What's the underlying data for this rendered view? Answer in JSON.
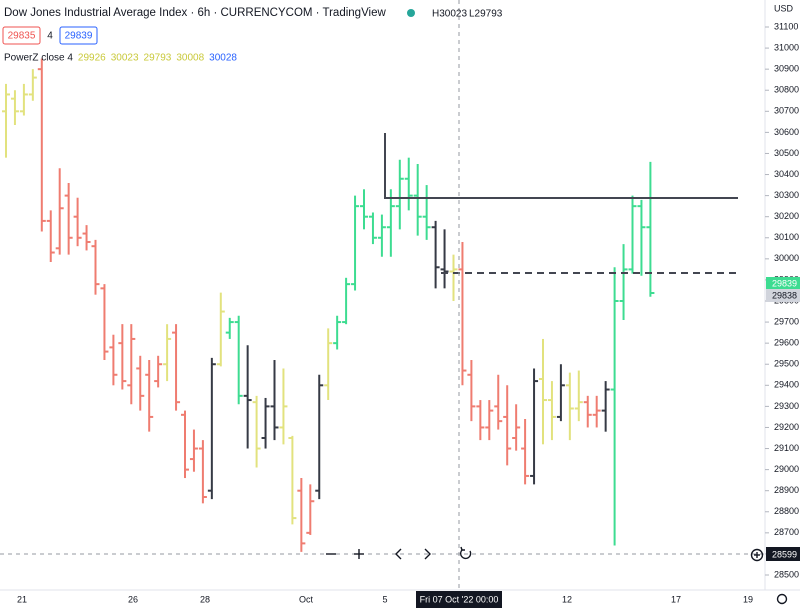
{
  "chart_data": {
    "type": "ohlc",
    "title": "Dow Jones Industrial Average Index · 6h · CURRENCYCOM · TradingView",
    "header_high": "H30023",
    "header_low": "L29793",
    "bid": "29835",
    "spread": "4",
    "ask": "29839",
    "indicator": {
      "name": "PowerZ close 4",
      "values": [
        29926,
        30023,
        29793,
        30008,
        30028
      ]
    },
    "currency": "USD",
    "open": [
      30700,
      30760,
      30700,
      30780,
      30900,
      30180,
      30050,
      30300,
      30200,
      30120,
      30060,
      29860,
      29580,
      29600,
      29400,
      29480,
      29450,
      29420,
      29500,
      29650,
      29260,
      29050,
      29100,
      28900,
      29500,
      29650,
      29700,
      29350,
      29320,
      29150,
      29300,
      29200,
      29150,
      28900,
      28700,
      28900,
      29400,
      29600,
      29700,
      29880,
      30250,
      30200,
      30100,
      30150,
      30250,
      30380,
      30300,
      30200,
      30150,
      29950,
      29940,
      29950,
      29450,
      29300,
      29200,
      29300,
      29250,
      29150,
      29100,
      28970,
      29430,
      29330,
      29250,
      29400,
      29290,
      29320,
      29260,
      29280,
      29380,
      29800,
      29950,
      30250,
      30150
    ],
    "high": [
      30830,
      30800,
      30830,
      30900,
      30950,
      30230,
      30430,
      30360,
      30290,
      30160,
      30090,
      29880,
      29640,
      29690,
      29690,
      29540,
      29520,
      29540,
      29690,
      29690,
      29280,
      29190,
      29140,
      29530,
      29840,
      29720,
      29730,
      29590,
      29350,
      29340,
      29520,
      29480,
      29160,
      28960,
      28930,
      29450,
      29670,
      29730,
      29910,
      30300,
      30330,
      30220,
      30210,
      30330,
      30470,
      30480,
      30450,
      30350,
      30180,
      30140,
      30020,
      30080,
      29520,
      29330,
      29330,
      29450,
      29400,
      29310,
      29240,
      29480,
      29620,
      29420,
      29500,
      29460,
      29470,
      29350,
      29350,
      29420,
      29960,
      30070,
      30300,
      30280,
      30460
    ],
    "low": [
      30480,
      30635,
      30680,
      30750,
      30130,
      29985,
      30020,
      30020,
      30060,
      30040,
      29830,
      29520,
      29400,
      29380,
      29310,
      29280,
      29180,
      29390,
      29420,
      29280,
      28960,
      28990,
      28840,
      28860,
      29490,
      29620,
      29310,
      29100,
      29010,
      29100,
      29140,
      29120,
      28740,
      28610,
      28690,
      28860,
      29330,
      29570,
      29690,
      29850,
      30140,
      30070,
      30010,
      30010,
      30140,
      30230,
      30110,
      30090,
      29860,
      29860,
      29800,
      29400,
      29230,
      29140,
      29140,
      29190,
      29020,
      29090,
      28930,
      28930,
      29120,
      29140,
      29230,
      29140,
      29230,
      29200,
      29200,
      29180,
      28640,
      29710,
      29930,
      29920,
      29820
    ],
    "close": [
      30780,
      30700,
      30780,
      30860,
      30180,
      30030,
      30240,
      30100,
      30100,
      30080,
      29880,
      29560,
      29450,
      29420,
      29620,
      29350,
      29250,
      29500,
      29620,
      29320,
      29000,
      29100,
      28870,
      29500,
      29750,
      29700,
      29350,
      29330,
      29100,
      29300,
      29200,
      29300,
      28770,
      28650,
      28850,
      29400,
      29600,
      29700,
      29880,
      30250,
      30200,
      30100,
      30150,
      30250,
      30380,
      30300,
      30200,
      30150,
      29960,
      29940,
      29950,
      29470,
      29300,
      29200,
      29280,
      29230,
      29100,
      29200,
      28970,
      29420,
      29330,
      29250,
      29400,
      29290,
      29320,
      29260,
      29280,
      29380,
      29800,
      29950,
      30250,
      30150,
      29838
    ],
    "bar_colors": "yyyyrrrrrrrrrrrrrryrrrrkyggkykkyyrrkygggggggggggkkyrrrrrrrrkyykyyrrkggggg",
    "palette": {
      "y": "#e2e27e",
      "r": "#ef7c70",
      "g": "#3ddc91",
      "k": "#363a45"
    },
    "ylim": [
      28450,
      31180
    ],
    "yticks": [
      28500,
      28600,
      28700,
      28800,
      28900,
      29000,
      29100,
      29200,
      29300,
      29400,
      29500,
      29600,
      29700,
      29800,
      29900,
      30000,
      30100,
      30200,
      30300,
      30400,
      30500,
      30600,
      30700,
      30800,
      30900,
      31000,
      31100
    ],
    "x_labels": [
      "21",
      "26",
      "28",
      "Oct",
      "5",
      "12",
      "17",
      "19"
    ],
    "crosshair_time": "Fri 07 Oct '22  00:00",
    "crosshair_price": "28599",
    "last_price": "29839",
    "prev_price": "29838"
  }
}
